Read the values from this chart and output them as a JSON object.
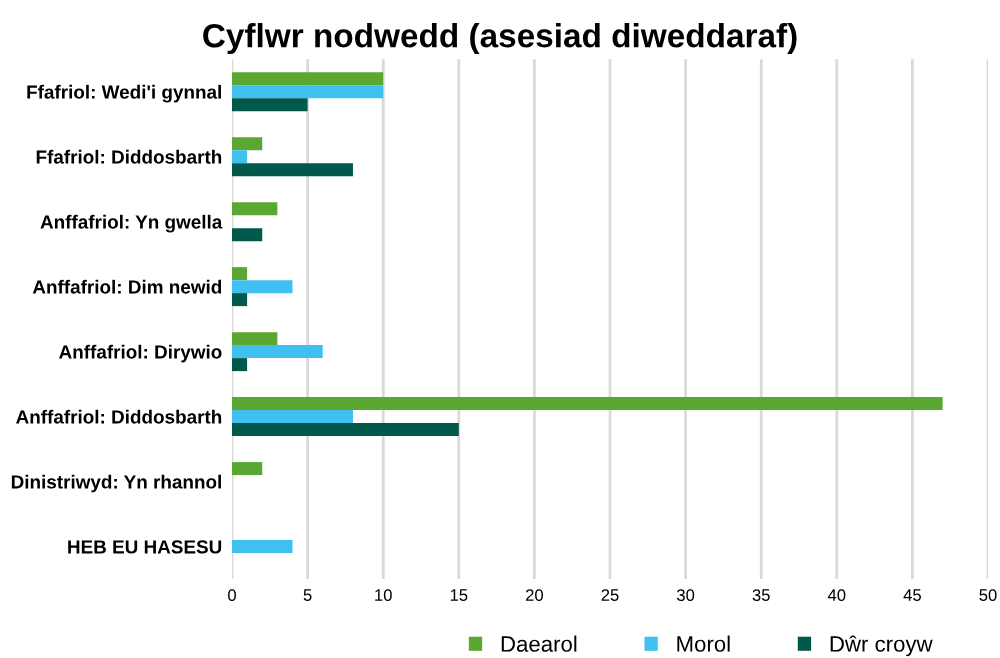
{
  "chart_data": {
    "type": "bar",
    "orientation": "horizontal",
    "title": "Cyflwr nodwedd (asesiad diweddaraf)",
    "categories": [
      "Ffafriol: Wedi'i gynnal",
      "Ffafriol: Diddosbarth",
      "Anffafriol: Yn gwella",
      "Anffafriol: Dim newid",
      "Anffafriol: Dirywio",
      "Anffafriol: Diddosbarth",
      "Dinistriwyd: Yn rhannol",
      "HEB EU HASESU"
    ],
    "series": [
      {
        "name": "Daearol",
        "color": "#5aa832",
        "values": [
          10,
          2,
          3,
          1,
          3,
          47,
          2,
          null
        ]
      },
      {
        "name": "Morol",
        "color": "#40c0f0",
        "values": [
          10,
          1,
          null,
          4,
          6,
          8,
          null,
          4
        ]
      },
      {
        "name": "Dŵr croyw",
        "color": "#00594a",
        "values": [
          5,
          8,
          2,
          1,
          1,
          15,
          null,
          null
        ]
      }
    ],
    "xlim": [
      0,
      50
    ],
    "xticks": [
      0,
      5,
      10,
      15,
      20,
      25,
      30,
      35,
      40,
      45,
      50
    ],
    "grid": "x",
    "legend": "bottom"
  }
}
